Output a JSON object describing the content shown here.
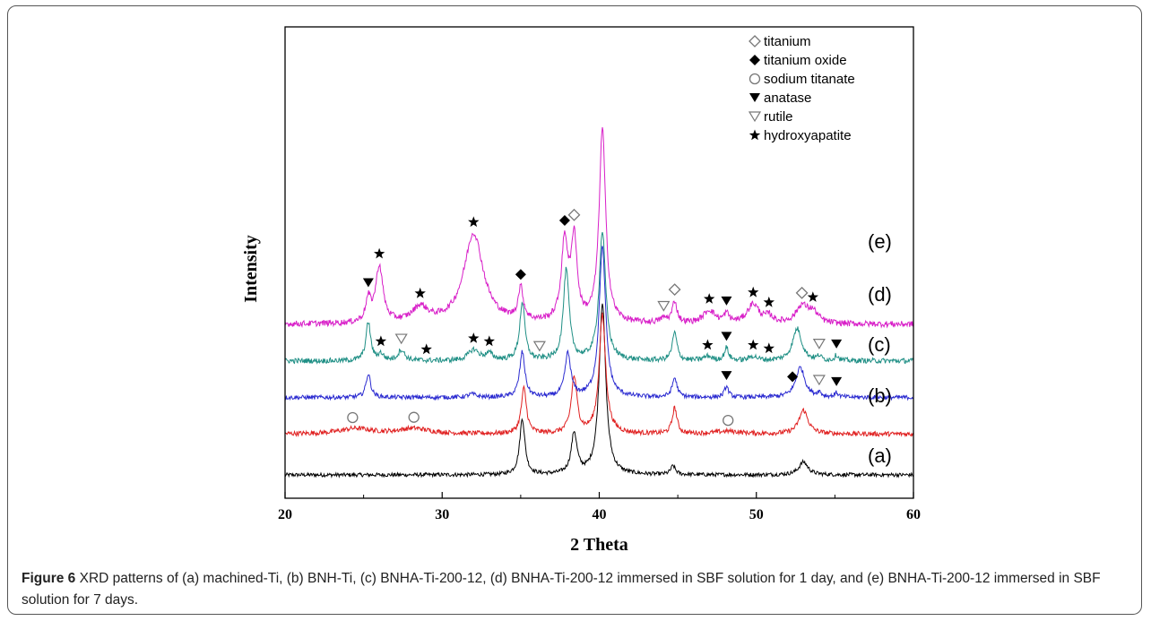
{
  "chart_data": {
    "type": "line",
    "xlabel": "2 Theta",
    "ylabel": "Intensity",
    "xlim": [
      20,
      60
    ],
    "x_ticks": [
      "20",
      "30",
      "40",
      "50",
      "60"
    ],
    "grid": false,
    "legend_placement": "top-right",
    "legend": [
      {
        "marker": "open-diamond",
        "label": "titanium"
      },
      {
        "marker": "filled-diamond",
        "label": "titanium oxide"
      },
      {
        "marker": "open-circle",
        "label": "sodium titanate"
      },
      {
        "marker": "filled-triangle-down",
        "label": "anatase"
      },
      {
        "marker": "open-triangle-down",
        "label": "rutile"
      },
      {
        "marker": "star",
        "label": "hydroxyapatite"
      }
    ],
    "series": [
      {
        "name": "(a)",
        "color": "#000000",
        "baseline": 0.0,
        "noise": 0.09,
        "peaks": [
          [
            35.1,
            2.6,
            0.2
          ],
          [
            38.4,
            1.9,
            0.22
          ],
          [
            40.2,
            8.0,
            0.25
          ],
          [
            44.7,
            0.4,
            0.18
          ],
          [
            53.0,
            0.6,
            0.35
          ]
        ]
      },
      {
        "name": "(b)",
        "color": "#e02020",
        "baseline": 1.9,
        "noise": 0.11,
        "peaks": [
          [
            24.5,
            0.25,
            1.2
          ],
          [
            28.2,
            0.25,
            1.2
          ],
          [
            35.2,
            2.1,
            0.2
          ],
          [
            38.4,
            2.6,
            0.22
          ],
          [
            40.2,
            5.5,
            0.25
          ],
          [
            44.8,
            1.2,
            0.18
          ],
          [
            48.2,
            0.12,
            1.0
          ],
          [
            53.0,
            1.1,
            0.35
          ]
        ]
      },
      {
        "name": "(c)",
        "color": "#2a2ad0",
        "baseline": 3.6,
        "noise": 0.1,
        "peaks": [
          [
            25.3,
            1.1,
            0.18
          ],
          [
            31.9,
            0.15,
            0.3
          ],
          [
            35.1,
            2.1,
            0.2
          ],
          [
            38.0,
            2.0,
            0.22
          ],
          [
            40.2,
            7.0,
            0.25
          ],
          [
            44.8,
            0.9,
            0.18
          ],
          [
            48.1,
            0.5,
            0.16
          ],
          [
            52.8,
            1.4,
            0.35
          ],
          [
            54.0,
            0.2,
            0.14
          ],
          [
            55.1,
            0.2,
            0.14
          ]
        ]
      },
      {
        "name": "(d)",
        "color": "#1f8f85",
        "baseline": 5.3,
        "noise": 0.12,
        "peaks": [
          [
            25.3,
            1.8,
            0.18
          ],
          [
            27.4,
            0.5,
            0.25
          ],
          [
            26.1,
            0.3,
            0.2
          ],
          [
            32.0,
            0.5,
            0.4
          ],
          [
            33.0,
            0.3,
            0.3
          ],
          [
            35.1,
            2.7,
            0.2
          ],
          [
            37.9,
            4.2,
            0.22
          ],
          [
            40.2,
            6.0,
            0.25
          ],
          [
            44.8,
            1.3,
            0.18
          ],
          [
            46.9,
            0.2,
            0.3
          ],
          [
            48.1,
            0.6,
            0.16
          ],
          [
            49.8,
            0.2,
            0.3
          ],
          [
            52.6,
            1.5,
            0.35
          ],
          [
            54.0,
            0.2,
            0.14
          ],
          [
            55.1,
            0.25,
            0.14
          ]
        ]
      },
      {
        "name": "(e)",
        "color": "#d81fc8",
        "baseline": 7.0,
        "noise": 0.14,
        "peaks": [
          [
            25.3,
            1.0,
            0.2
          ],
          [
            26.0,
            2.6,
            0.28
          ],
          [
            28.6,
            0.7,
            0.6
          ],
          [
            32.0,
            4.2,
            0.75
          ],
          [
            35.0,
            1.5,
            0.2
          ],
          [
            37.8,
            3.7,
            0.25
          ],
          [
            38.4,
            3.8,
            0.22
          ],
          [
            40.2,
            9.0,
            0.25
          ],
          [
            44.1,
            0.2,
            0.3
          ],
          [
            44.8,
            1.0,
            0.18
          ],
          [
            47.0,
            0.6,
            0.45
          ],
          [
            48.1,
            0.4,
            0.2
          ],
          [
            49.8,
            0.9,
            0.45
          ],
          [
            50.8,
            0.3,
            0.3
          ],
          [
            52.9,
            0.8,
            0.45
          ],
          [
            53.6,
            0.5,
            0.4
          ]
        ]
      }
    ],
    "annotations": [
      {
        "series": "(e)",
        "markers": [
          [
            "star",
            26.0
          ],
          [
            "filled-triangle-down",
            25.3
          ],
          [
            "star",
            28.6
          ],
          [
            "star",
            32.0
          ],
          [
            "filled-diamond",
            35.0
          ],
          [
            "filled-diamond",
            37.8
          ],
          [
            "open-diamond",
            38.4
          ],
          [
            "open-triangle-down",
            44.1
          ],
          [
            "open-diamond",
            44.8
          ],
          [
            "star",
            47.0
          ],
          [
            "filled-triangle-down",
            48.1
          ],
          [
            "star",
            49.8
          ],
          [
            "star",
            50.8
          ],
          [
            "open-diamond",
            52.9
          ],
          [
            "star",
            53.6
          ]
        ]
      },
      {
        "series": "(d)",
        "markers": [
          [
            "star",
            26.1
          ],
          [
            "open-triangle-down",
            27.4
          ],
          [
            "star",
            29.0
          ],
          [
            "star",
            32.0
          ],
          [
            "star",
            33.0
          ],
          [
            "open-triangle-down",
            36.2
          ],
          [
            "star",
            46.9
          ],
          [
            "filled-triangle-down",
            48.1
          ],
          [
            "star",
            49.8
          ],
          [
            "star",
            50.8
          ],
          [
            "open-triangle-down",
            54.0
          ],
          [
            "filled-triangle-down",
            55.1
          ]
        ]
      },
      {
        "series": "(c)",
        "markers": [
          [
            "filled-triangle-down",
            48.1
          ],
          [
            "filled-diamond",
            52.3
          ],
          [
            "open-triangle-down",
            54.0
          ],
          [
            "filled-triangle-down",
            55.1
          ]
        ]
      },
      {
        "series": "(b)",
        "markers": [
          [
            "open-circle",
            24.3
          ],
          [
            "open-circle",
            28.2
          ],
          [
            "open-circle",
            48.2
          ]
        ]
      }
    ]
  },
  "caption": {
    "bold": "Figure 6",
    "text": " XRD patterns of (a) machined-Ti, (b) BNH-Ti, (c) BNHA-Ti-200-12, (d) BNHA-Ti-200-12 immersed in SBF solution for 1 day, and (e) BNHA-Ti-200-12 immersed in SBF solution for 7 days."
  }
}
